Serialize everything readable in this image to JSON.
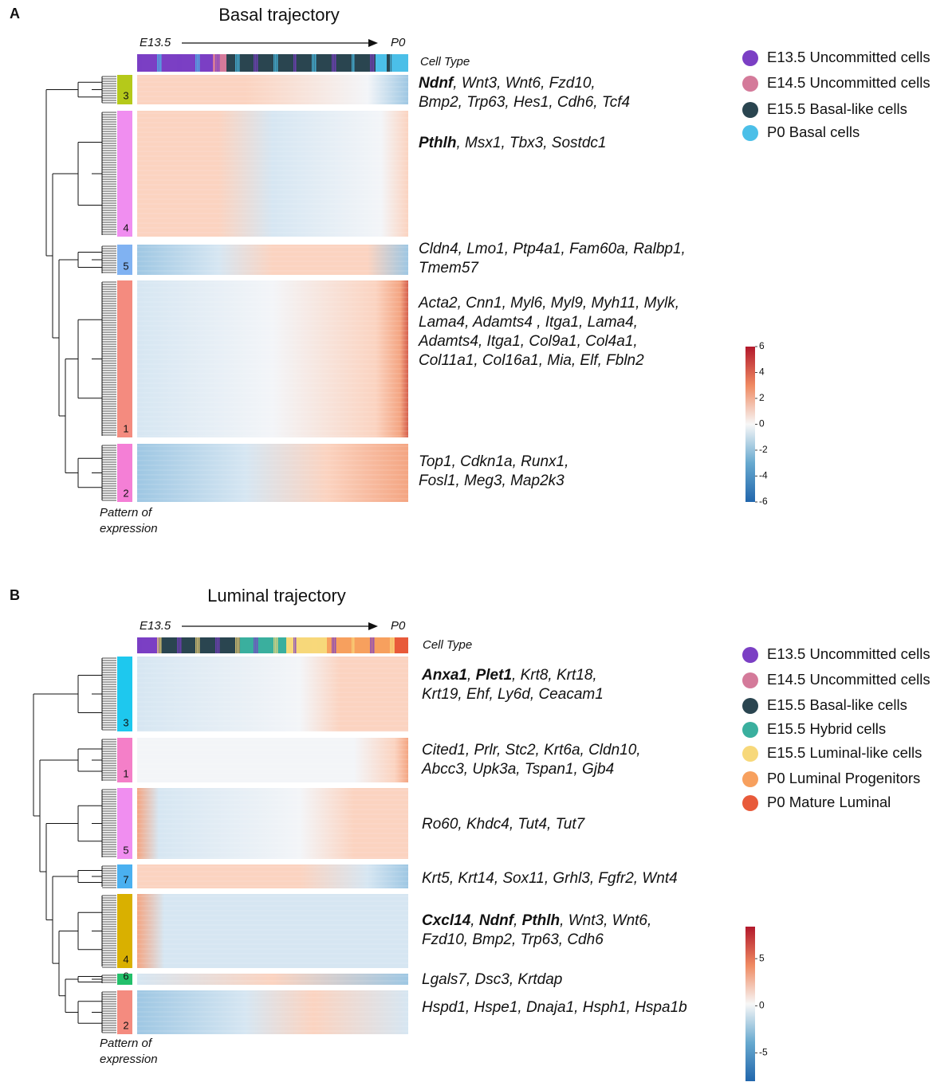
{
  "panels": [
    {
      "label": "A",
      "title": "Basal trajectory",
      "start": "E13.5",
      "end": "P0",
      "cell_type_label": "Cell Type",
      "pattern_label": [
        "Pattern of",
        "expression"
      ],
      "clusters": [
        {
          "label": "3",
          "color": "#b5c91a",
          "genes": [
            [
              {
                "text": "Ndnf",
                "bold": true
              },
              {
                "text": ", Wnt3, Wnt6, Fzd10,"
              }
            ],
            [
              {
                "text": "Bmp2, Trp63, Hes1, Cdh6, Tcf4"
              }
            ]
          ]
        },
        {
          "label": "4",
          "color": "#f08ef0",
          "genes": [
            [
              {
                "text": "Pthlh",
                "bold": true
              },
              {
                "text": ", Msx1, Tbx3, Sostdc1"
              }
            ]
          ]
        },
        {
          "label": "5",
          "color": "#80b2f2",
          "genes": [
            [
              {
                "text": "Cldn4, Lmo1, Ptp4a1, Fam60a, Ralbp1,"
              }
            ],
            [
              {
                "text": "Tmem57"
              }
            ]
          ]
        },
        {
          "label": "1",
          "color": "#f48b7f",
          "genes": [
            [
              {
                "text": "Acta2, Cnn1, Myl6, Myl9, Myh11, Mylk,"
              }
            ],
            [
              {
                "text": "Lama4, Adamts4 , Itga1, Lama4,"
              }
            ],
            [
              {
                "text": "Adamts4, Itga1, Col9a1, Col4a1,"
              }
            ],
            [
              {
                "text": "Col11a1, Col16a1, Mia, Elf, Fbln2"
              }
            ]
          ]
        },
        {
          "label": "2",
          "color": "#f47fd6",
          "genes": [
            [
              {
                "text": "Top1, Cdkn1a, Runx1,"
              }
            ],
            [
              {
                "text": "Fosl1, Meg3, Map2k3"
              }
            ]
          ]
        }
      ],
      "legend": [
        {
          "name": "E13.5 Uncommitted cells",
          "color": "#7b3fc4"
        },
        {
          "name": "E14.5 Uncommitted cells",
          "color": "#d47a9a"
        },
        {
          "name": "E15.5 Basal-like cells",
          "color": "#2a4550"
        },
        {
          "name": "P0 Basal cells",
          "color": "#4bbfe8"
        }
      ],
      "colorbar_lim": [
        -6,
        6
      ],
      "colorbar_ticks": [
        6,
        4,
        2,
        0,
        -2,
        -4,
        -6
      ]
    },
    {
      "label": "B",
      "title": "Luminal trajectory",
      "start": "E13.5",
      "end": "P0",
      "cell_type_label": "Cell Type",
      "pattern_label": [
        "Pattern of",
        "expression"
      ],
      "clusters": [
        {
          "label": "3",
          "color": "#1ec8ee",
          "genes": [
            [
              {
                "text": "Anxa1",
                "bold": true
              },
              {
                "text": ", "
              },
              {
                "text": "Plet1",
                "bold": true
              },
              {
                "text": ", Krt8, Krt18,"
              }
            ],
            [
              {
                "text": "Krt19, Ehf, Ly6d, Ceacam1"
              }
            ]
          ]
        },
        {
          "label": "1",
          "color": "#f47fc8",
          "genes": [
            [
              {
                "text": "Cited1, Prlr, Stc2, Krt6a, Cldn10,"
              }
            ],
            [
              {
                "text": "Abcc3, Upk3a, Tspan1, Gjb4"
              }
            ]
          ]
        },
        {
          "label": "5",
          "color": "#f08ef0",
          "genes": [
            [
              {
                "text": "Ro60, Khdc4, Tut4, Tut7"
              }
            ]
          ]
        },
        {
          "label": "7",
          "color": "#4ab0f0",
          "genes": [
            [
              {
                "text": "Krt5, Krt14, Sox11, Grhl3, Fgfr2, Wnt4"
              }
            ]
          ]
        },
        {
          "label": "4",
          "color": "#d9b000",
          "genes": [
            [
              {
                "text": "Cxcl14",
                "bold": true
              },
              {
                "text": ", "
              },
              {
                "text": "Ndnf",
                "bold": true
              },
              {
                "text": ", "
              },
              {
                "text": "Pthlh",
                "bold": true
              },
              {
                "text": ", Wnt3, Wnt6,"
              }
            ],
            [
              {
                "text": "Fzd10, Bmp2, Trp63, Cdh6"
              }
            ]
          ]
        },
        {
          "label": "6",
          "color": "#22c06a",
          "genes": [
            [
              {
                "text": "Lgals7, Dsc3, Krtdap"
              }
            ]
          ]
        },
        {
          "label": "2",
          "color": "#f48b7f",
          "genes": [
            [
              {
                "text": "Hspd1, Hspe1, Dnaja1, Hsph1, Hspa1b"
              }
            ]
          ]
        }
      ],
      "legend": [
        {
          "name": "E13.5 Uncommitted cells",
          "color": "#7b3fc4"
        },
        {
          "name": "E14.5 Uncommitted cells",
          "color": "#d47a9a"
        },
        {
          "name": "E15.5 Basal-like cells",
          "color": "#2a4550"
        },
        {
          "name": "E15.5 Hybrid cells",
          "color": "#3aaf9e"
        },
        {
          "name": "E15.5 Luminal-like cells",
          "color": "#f7d87a"
        },
        {
          "name": "P0 Luminal Progenitors",
          "color": "#f7a05e"
        },
        {
          "name": "P0 Mature Luminal",
          "color": "#e85a3a"
        }
      ],
      "colorbar_lim": [
        -8,
        8.4
      ],
      "colorbar_ticks": [
        5,
        0,
        -5
      ]
    }
  ]
}
